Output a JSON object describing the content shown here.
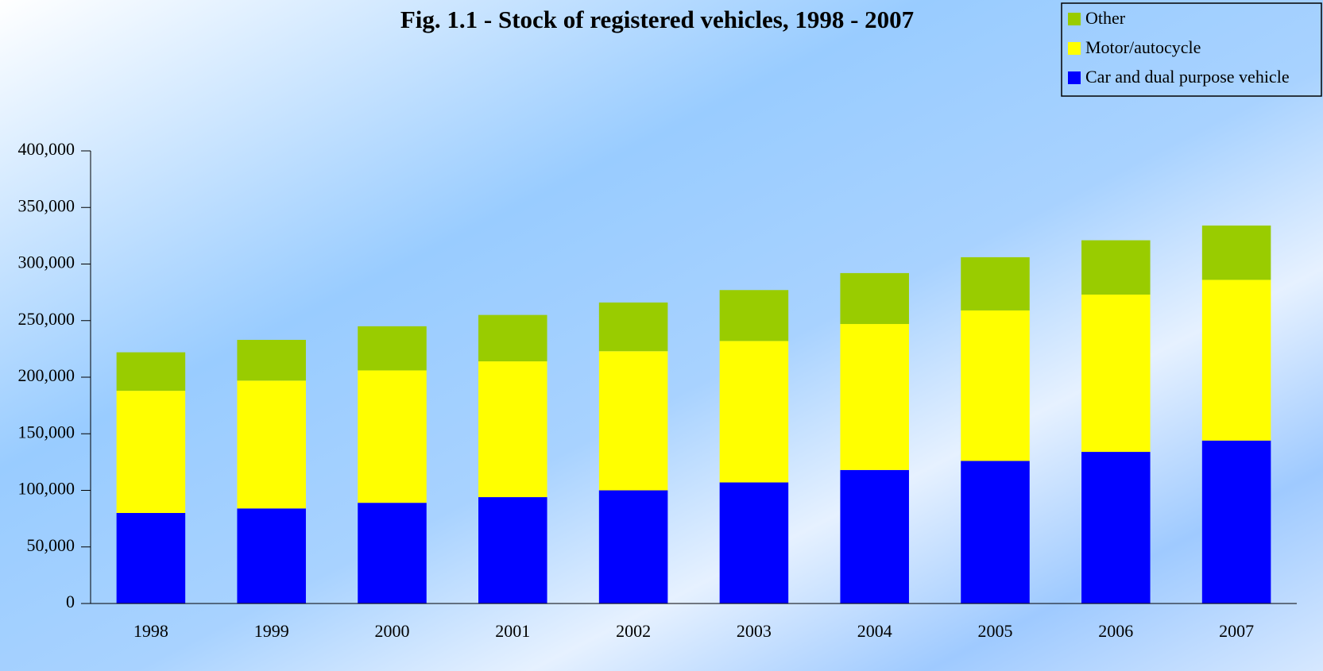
{
  "chart_data": {
    "type": "stacked_bar",
    "title": "Fig. 1.1 - Stock of registered vehicles, 1998 - 2007",
    "categories": [
      "1998",
      "1999",
      "2000",
      "2001",
      "2002",
      "2003",
      "2004",
      "2005",
      "2006",
      "2007"
    ],
    "series": [
      {
        "name": "Car and dual purpose vehicle",
        "color": "#0000ff",
        "values": [
          80000,
          84000,
          89000,
          94000,
          100000,
          107000,
          118000,
          126000,
          134000,
          144000
        ]
      },
      {
        "name": "Motor/autocycle",
        "color": "#ffff00",
        "values": [
          108000,
          113000,
          117000,
          120000,
          123000,
          125000,
          129000,
          133000,
          139000,
          142000
        ]
      },
      {
        "name": "Other",
        "color": "#99cc00",
        "values": [
          34000,
          36000,
          39000,
          41000,
          43000,
          45000,
          45000,
          47000,
          48000,
          48000
        ]
      }
    ],
    "ylim": [
      0,
      400000
    ],
    "yticks": [
      0,
      {
        "value": 50000,
        "label": "50,000"
      },
      {
        "value": 100000,
        "label": "100,000"
      },
      {
        "value": 150000,
        "label": "150,000"
      },
      {
        "value": 200000,
        "label": "200,000"
      },
      {
        "value": 250000,
        "label": "250,000"
      },
      {
        "value": 300000,
        "label": "300,000"
      },
      {
        "value": 350000,
        "label": "350,000"
      },
      {
        "value": 400000,
        "label": "400,000"
      }
    ],
    "grid": false,
    "legend": "top-right"
  }
}
